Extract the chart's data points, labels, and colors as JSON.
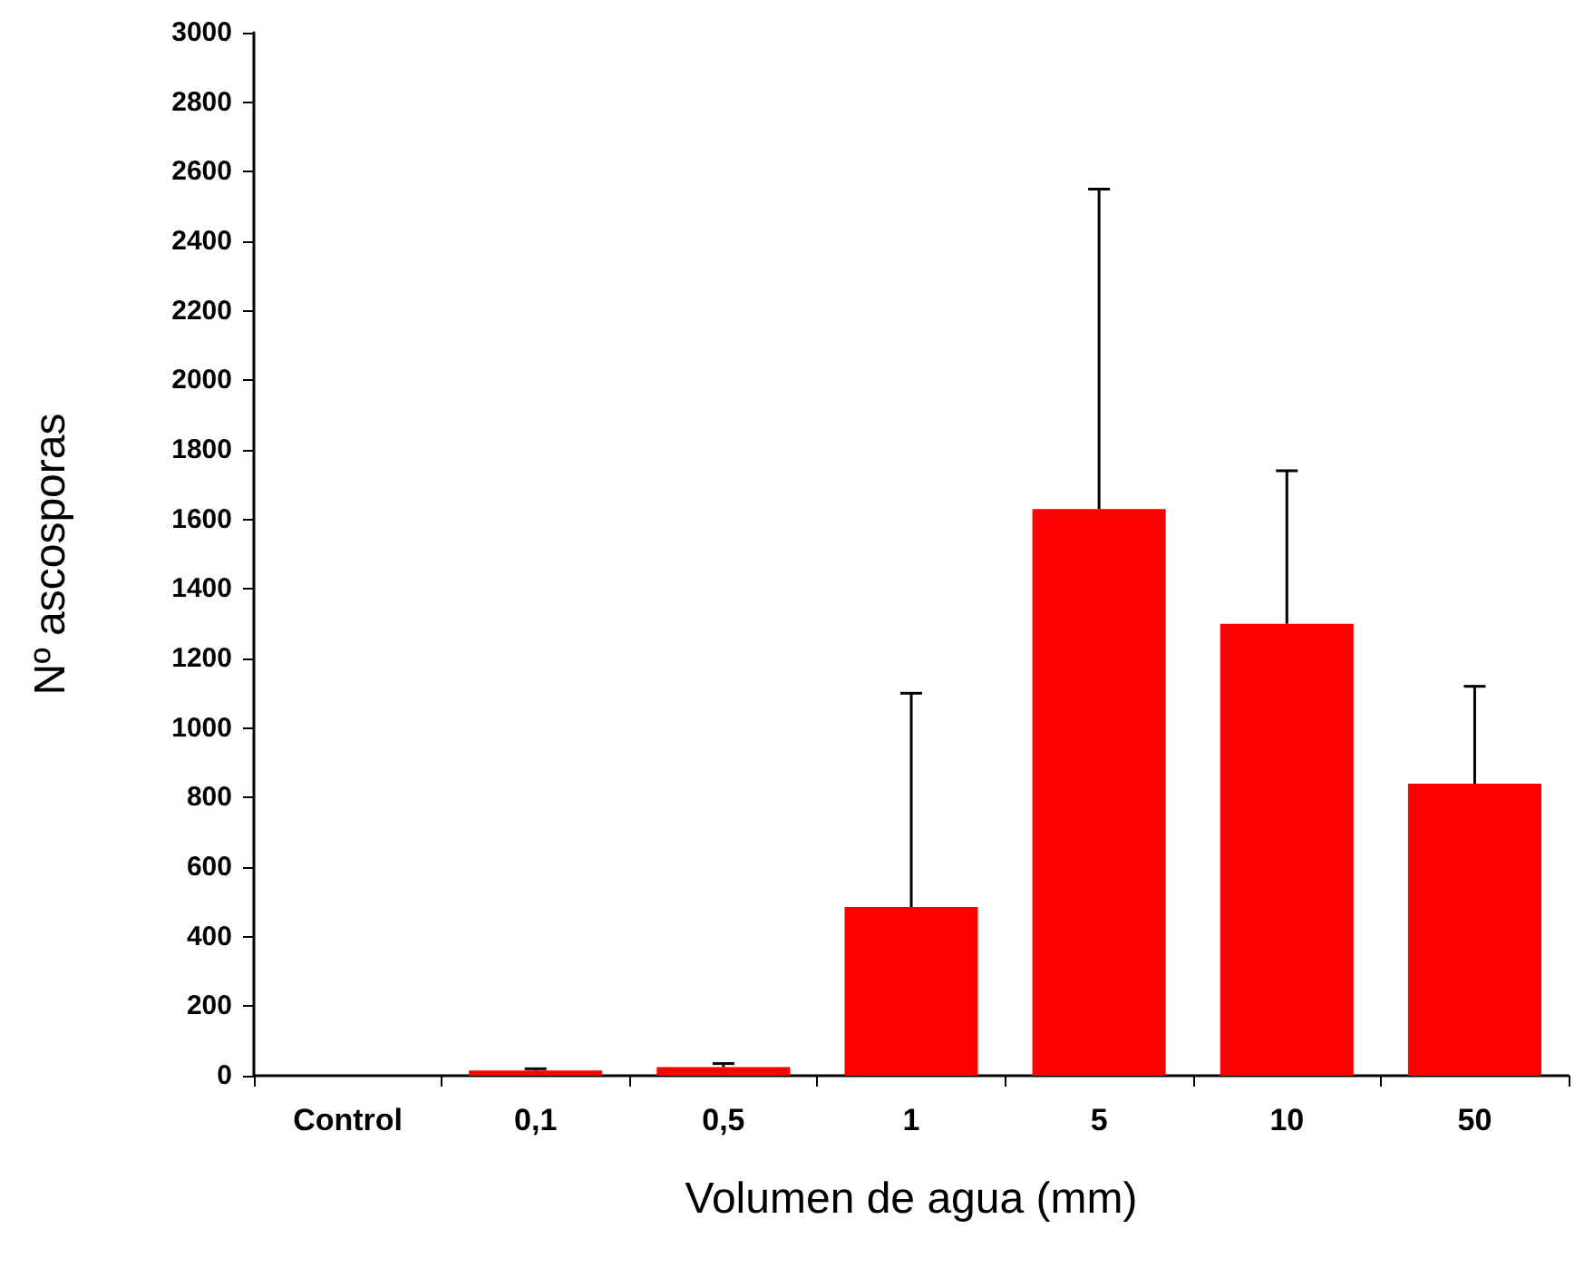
{
  "chart_data": {
    "type": "bar",
    "xlabel": "Volumen de agua (mm)",
    "ylabel": "Nº ascosporas",
    "categories": [
      "Control",
      "0,1",
      "0,5",
      "1",
      "5",
      "10",
      "50"
    ],
    "values": [
      0,
      15,
      25,
      485,
      1630,
      1300,
      840
    ],
    "errors": [
      null,
      [
        15,
        20
      ],
      [
        25,
        35
      ],
      [
        485,
        1100
      ],
      [
        1630,
        2550
      ],
      [
        1300,
        1740
      ],
      [
        840,
        1120
      ]
    ],
    "color": "#ff0000",
    "ylim": [
      0,
      3000
    ],
    "yticks": [
      0,
      200,
      400,
      600,
      800,
      1000,
      1200,
      1400,
      1600,
      1800,
      2000,
      2200,
      2400,
      2600,
      2800,
      3000
    ],
    "grid": false
  }
}
